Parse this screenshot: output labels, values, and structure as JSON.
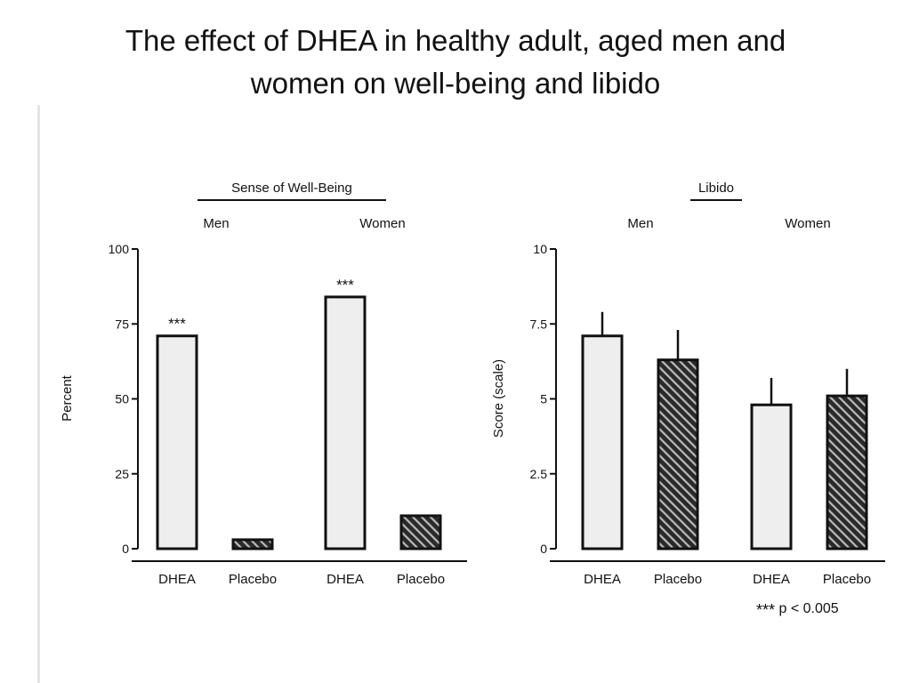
{
  "slide": {
    "title_line1": "The effect of DHEA in healthy adult, aged men and",
    "title_line2": "women on well-being and libido"
  },
  "footnote": {
    "stars": "***",
    "text": "p < 0.005"
  },
  "chart_data": [
    {
      "type": "bar",
      "title": "Sense of Well-Being",
      "groups": [
        "Men",
        "Women"
      ],
      "categories": [
        "DHEA",
        "Placebo",
        "DHEA",
        "Placebo"
      ],
      "values": [
        71,
        3,
        84,
        11
      ],
      "significance": [
        "***",
        "",
        "***",
        ""
      ],
      "fills": [
        "plain",
        "hatched",
        "plain",
        "hatched"
      ],
      "ylabel": "Percent",
      "ylim": [
        0,
        100
      ],
      "yticks": [
        0,
        25,
        50,
        75,
        100
      ],
      "ytick_labels": [
        "0",
        "25",
        "50",
        "75",
        "100"
      ]
    },
    {
      "type": "bar",
      "title": "Libido",
      "groups": [
        "Men",
        "Women"
      ],
      "categories": [
        "DHEA",
        "Placebo",
        "DHEA",
        "Placebo"
      ],
      "values": [
        7.1,
        6.3,
        4.8,
        5.1
      ],
      "errors": [
        0.8,
        1.0,
        0.9,
        0.9
      ],
      "fills": [
        "plain",
        "hatched",
        "plain",
        "hatched"
      ],
      "ylabel": "Score (scale)",
      "ylim": [
        0,
        10
      ],
      "yticks": [
        0,
        2.5,
        5,
        7.5,
        10
      ],
      "ytick_labels": [
        "0",
        "2.5",
        "5",
        "7.5",
        "10"
      ]
    }
  ],
  "colors": {
    "bar_plain": "#eeeeee",
    "bar_stroke": "#111111",
    "hatch_bg": "#2a2a2a",
    "hatch_line": "#bbbbbb"
  }
}
